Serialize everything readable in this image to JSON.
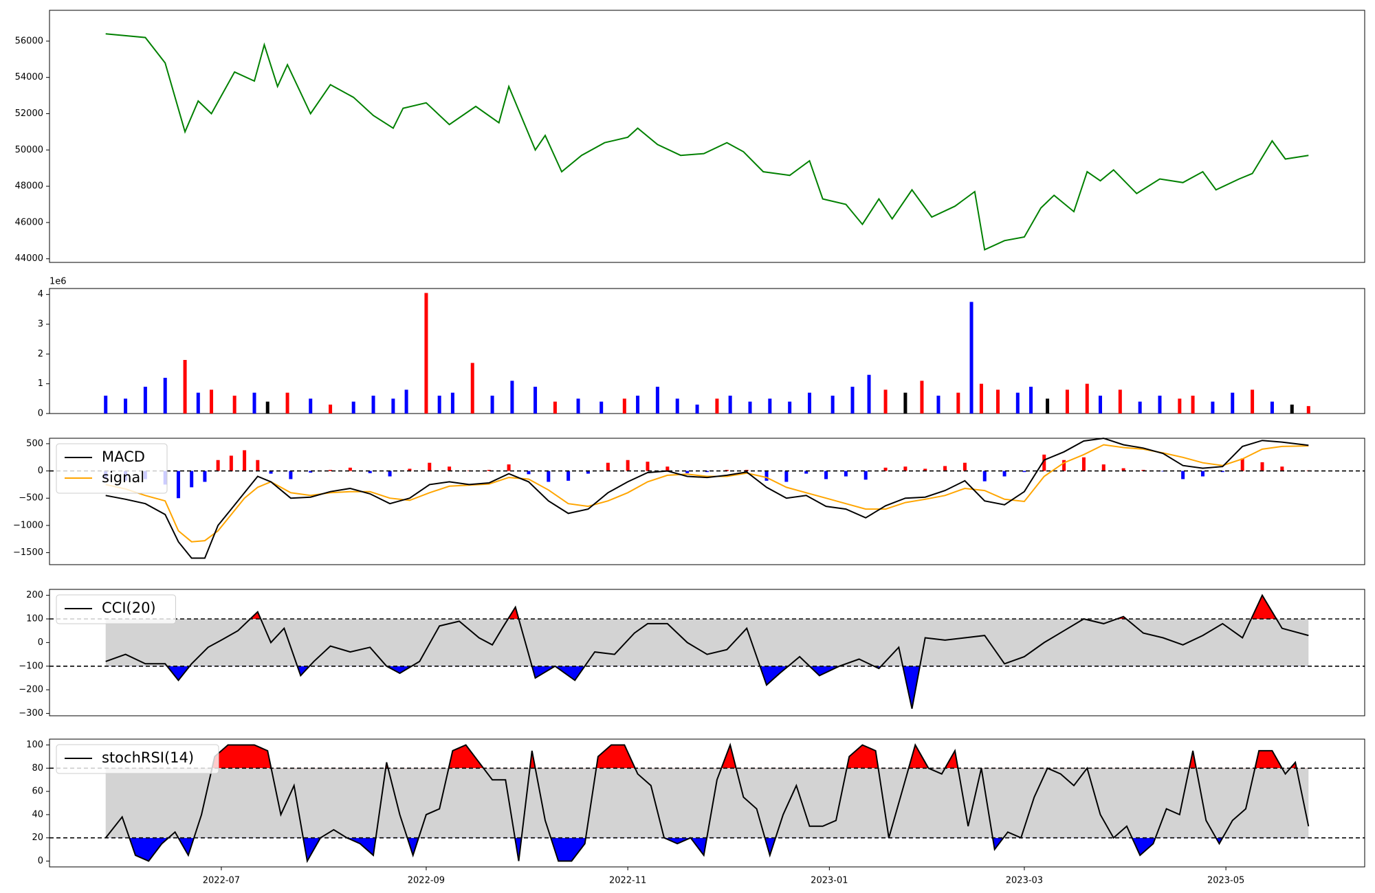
{
  "chart_data": [
    {
      "type": "line",
      "panel": "price",
      "color": "#008000",
      "ylim": [
        43800,
        57700
      ],
      "yticks": [
        44000,
        46000,
        48000,
        50000,
        52000,
        54000,
        56000
      ],
      "yticklabels": [
        "44000",
        "46000",
        "48000",
        "50000",
        "52000",
        "54000",
        "56000"
      ],
      "x": [
        "2022-05-27",
        "2022-06-08",
        "2022-06-14",
        "2022-06-20",
        "2022-06-24",
        "2022-06-28",
        "2022-07-05",
        "2022-07-11",
        "2022-07-14",
        "2022-07-18",
        "2022-07-21",
        "2022-07-28",
        "2022-08-03",
        "2022-08-10",
        "2022-08-16",
        "2022-08-22",
        "2022-08-25",
        "2022-09-01",
        "2022-09-08",
        "2022-09-16",
        "2022-09-23",
        "2022-09-26",
        "2022-10-04",
        "2022-10-07",
        "2022-10-12",
        "2022-10-18",
        "2022-10-25",
        "2022-11-01",
        "2022-11-04",
        "2022-11-10",
        "2022-11-17",
        "2022-11-24",
        "2022-12-01",
        "2022-12-06",
        "2022-12-12",
        "2022-12-20",
        "2022-12-26",
        "2022-12-30",
        "2023-01-06",
        "2023-01-11",
        "2023-01-16",
        "2023-01-20",
        "2023-01-26",
        "2023-02-01",
        "2023-02-08",
        "2023-02-14",
        "2023-02-17",
        "2023-02-23",
        "2023-03-01",
        "2023-03-06",
        "2023-03-10",
        "2023-03-16",
        "2023-03-20",
        "2023-03-24",
        "2023-03-28",
        "2023-04-04",
        "2023-04-11",
        "2023-04-18",
        "2023-04-24",
        "2023-04-28",
        "2023-05-05",
        "2023-05-09",
        "2023-05-15",
        "2023-05-19",
        "2023-05-26"
      ],
      "values": [
        56400,
        56200,
        54800,
        51000,
        52700,
        52000,
        54300,
        53800,
        55800,
        53500,
        54700,
        52000,
        53600,
        52900,
        51900,
        51200,
        52300,
        52600,
        51400,
        52400,
        51500,
        53500,
        50000,
        50800,
        48800,
        49700,
        50400,
        50700,
        51200,
        50300,
        49700,
        49800,
        50400,
        49900,
        48800,
        48600,
        49400,
        47300,
        47000,
        45900,
        47300,
        46200,
        47800,
        46300,
        46900,
        47700,
        44500,
        45000,
        45200,
        46800,
        47500,
        46600,
        48800,
        48300,
        48900,
        47600,
        48400,
        48200,
        48800,
        47800,
        48400,
        48700,
        50500,
        49500,
        49700
      ]
    },
    {
      "type": "bar",
      "panel": "volume",
      "exponent_label": "1e6",
      "ylim": [
        0,
        4.2
      ],
      "yticks": [
        0,
        1,
        2,
        3,
        4
      ],
      "yticklabels": [
        "0",
        "1",
        "2",
        "3",
        "4"
      ],
      "colors": {
        "up": "#ff0000",
        "down": "#0000ff",
        "flat": "#000000"
      },
      "x": [
        "2022-05-27",
        "2022-06-02",
        "2022-06-08",
        "2022-06-14",
        "2022-06-20",
        "2022-06-24",
        "2022-06-28",
        "2022-07-05",
        "2022-07-11",
        "2022-07-15",
        "2022-07-21",
        "2022-07-28",
        "2022-08-03",
        "2022-08-10",
        "2022-08-16",
        "2022-08-22",
        "2022-08-26",
        "2022-09-01",
        "2022-09-05",
        "2022-09-09",
        "2022-09-15",
        "2022-09-21",
        "2022-09-27",
        "2022-10-04",
        "2022-10-10",
        "2022-10-17",
        "2022-10-24",
        "2022-10-31",
        "2022-11-04",
        "2022-11-10",
        "2022-11-16",
        "2022-11-22",
        "2022-11-28",
        "2022-12-02",
        "2022-12-08",
        "2022-12-14",
        "2022-12-20",
        "2022-12-26",
        "2023-01-02",
        "2023-01-08",
        "2023-01-13",
        "2023-01-18",
        "2023-01-24",
        "2023-01-29",
        "2023-02-03",
        "2023-02-09",
        "2023-02-13",
        "2023-02-16",
        "2023-02-21",
        "2023-02-27",
        "2023-03-03",
        "2023-03-08",
        "2023-03-14",
        "2023-03-20",
        "2023-03-24",
        "2023-03-30",
        "2023-04-05",
        "2023-04-11",
        "2023-04-17",
        "2023-04-21",
        "2023-04-27",
        "2023-05-03",
        "2023-05-09",
        "2023-05-15",
        "2023-05-21",
        "2023-05-26"
      ],
      "values": [
        0.6,
        0.5,
        0.9,
        1.2,
        1.8,
        0.7,
        0.8,
        0.6,
        0.7,
        0.4,
        0.7,
        0.5,
        0.3,
        0.4,
        0.6,
        0.5,
        0.8,
        4.05,
        0.6,
        0.7,
        1.7,
        0.6,
        1.1,
        0.9,
        0.4,
        0.5,
        0.4,
        0.5,
        0.6,
        0.9,
        0.5,
        0.3,
        0.5,
        0.6,
        0.4,
        0.5,
        0.4,
        0.7,
        0.6,
        0.9,
        1.3,
        0.8,
        0.7,
        1.1,
        0.6,
        0.7,
        3.75,
        1.0,
        0.8,
        0.7,
        0.9,
        0.5,
        0.8,
        1.0,
        0.6,
        0.8,
        0.4,
        0.6,
        0.5,
        0.6,
        0.4,
        0.7,
        0.8,
        0.4,
        0.3,
        0.25
      ],
      "directions": [
        "down",
        "down",
        "down",
        "down",
        "up",
        "down",
        "up",
        "up",
        "down",
        "flat",
        "up",
        "down",
        "up",
        "down",
        "down",
        "down",
        "down",
        "up",
        "down",
        "down",
        "up",
        "down",
        "down",
        "down",
        "up",
        "down",
        "down",
        "up",
        "down",
        "down",
        "down",
        "down",
        "up",
        "down",
        "down",
        "down",
        "down",
        "down",
        "down",
        "down",
        "down",
        "up",
        "flat",
        "up",
        "down",
        "up",
        "down",
        "up",
        "up",
        "down",
        "down",
        "flat",
        "up",
        "up",
        "down",
        "up",
        "down",
        "down",
        "up",
        "up",
        "down",
        "down",
        "up",
        "down",
        "flat",
        "up"
      ]
    },
    {
      "type": "line",
      "panel": "macd",
      "ylim": [
        -1720,
        600
      ],
      "yticks": [
        -1500,
        -1000,
        -500,
        0,
        500
      ],
      "yticklabels": [
        "−1500",
        "−1000",
        "−500",
        "0",
        "500"
      ],
      "legend": [
        "MACD",
        "signal"
      ],
      "legend_placement": "upper left",
      "hline": 0,
      "x": [
        "2022-05-27",
        "2022-06-02",
        "2022-06-08",
        "2022-06-14",
        "2022-06-18",
        "2022-06-22",
        "2022-06-26",
        "2022-06-30",
        "2022-07-04",
        "2022-07-08",
        "2022-07-12",
        "2022-07-16",
        "2022-07-22",
        "2022-07-28",
        "2022-08-03",
        "2022-08-09",
        "2022-08-15",
        "2022-08-21",
        "2022-08-27",
        "2022-09-02",
        "2022-09-08",
        "2022-09-14",
        "2022-09-20",
        "2022-09-26",
        "2022-10-02",
        "2022-10-08",
        "2022-10-14",
        "2022-10-20",
        "2022-10-26",
        "2022-11-01",
        "2022-11-07",
        "2022-11-13",
        "2022-11-19",
        "2022-11-25",
        "2022-12-01",
        "2022-12-07",
        "2022-12-13",
        "2022-12-19",
        "2022-12-25",
        "2022-12-31",
        "2023-01-06",
        "2023-01-12",
        "2023-01-18",
        "2023-01-24",
        "2023-01-30",
        "2023-02-05",
        "2023-02-11",
        "2023-02-17",
        "2023-02-23",
        "2023-03-01",
        "2023-03-07",
        "2023-03-13",
        "2023-03-19",
        "2023-03-25",
        "2023-03-31",
        "2023-04-06",
        "2023-04-12",
        "2023-04-18",
        "2023-04-24",
        "2023-04-30",
        "2023-05-06",
        "2023-05-12",
        "2023-05-18",
        "2023-05-26"
      ],
      "series": [
        {
          "name": "MACD",
          "color": "#000000",
          "values": [
            -450,
            -520,
            -600,
            -800,
            -1300,
            -1600,
            -1600,
            -1000,
            -700,
            -400,
            -100,
            -200,
            -500,
            -480,
            -380,
            -320,
            -420,
            -600,
            -500,
            -250,
            -200,
            -250,
            -220,
            -50,
            -200,
            -550,
            -780,
            -700,
            -400,
            -200,
            -30,
            0,
            -100,
            -120,
            -80,
            -20,
            -300,
            -500,
            -450,
            -650,
            -700,
            -860,
            -640,
            -500,
            -480,
            -360,
            -180,
            -550,
            -620,
            -380,
            200,
            350,
            550,
            600,
            480,
            420,
            320,
            100,
            50,
            80,
            450,
            560,
            530,
            470
          ]
        },
        {
          "name": "signal",
          "color": "#ffa500",
          "values": [
            -250,
            -330,
            -450,
            -550,
            -1100,
            -1300,
            -1280,
            -1100,
            -800,
            -500,
            -300,
            -200,
            -400,
            -450,
            -400,
            -380,
            -380,
            -500,
            -540,
            -400,
            -280,
            -260,
            -240,
            -120,
            -150,
            -350,
            -600,
            -650,
            -550,
            -400,
            -200,
            -80,
            -60,
            -100,
            -100,
            -40,
            -120,
            -300,
            -400,
            -500,
            -600,
            -700,
            -700,
            -580,
            -520,
            -450,
            -320,
            -360,
            -520,
            -560,
            -100,
            150,
            300,
            480,
            430,
            400,
            330,
            250,
            150,
            100,
            220,
            400,
            450,
            460
          ]
        },
        {
          "name": "histogram",
          "color": "#ff0000",
          "negative_color": "#0000ff",
          "values": [
            -150,
            -180,
            -150,
            -250,
            -500,
            -300,
            -200,
            200,
            280,
            380,
            200,
            -50,
            -150,
            -30,
            20,
            60,
            -40,
            -100,
            40,
            150,
            80,
            10,
            20,
            120,
            -60,
            -200,
            -180,
            -50,
            150,
            200,
            170,
            80,
            -40,
            -20,
            20,
            20,
            -180,
            -200,
            -50,
            -150,
            -100,
            -160,
            60,
            80,
            40,
            90,
            150,
            -190,
            -100,
            -20,
            300,
            200,
            250,
            120,
            50,
            20,
            -10,
            -150,
            -100,
            -20,
            230,
            160,
            80,
            10
          ]
        }
      ]
    },
    {
      "type": "area",
      "panel": "cci",
      "ylim": [
        -310,
        225
      ],
      "yticks": [
        -300,
        -200,
        -100,
        0,
        100,
        200
      ],
      "yticklabels": [
        "−300",
        "−200",
        "−100",
        "0",
        "100",
        "200"
      ],
      "legend": [
        "CCI(20)"
      ],
      "legend_placement": "upper left",
      "hlines": [
        100,
        -100
      ],
      "band_color": "#d3d3d3",
      "overbought_color": "#ff0000",
      "oversold_color": "#0000ff",
      "x": [
        "2022-05-27",
        "2022-06-02",
        "2022-06-08",
        "2022-06-14",
        "2022-06-18",
        "2022-06-22",
        "2022-06-27",
        "2022-07-01",
        "2022-07-06",
        "2022-07-12",
        "2022-07-16",
        "2022-07-20",
        "2022-07-25",
        "2022-07-29",
        "2022-08-03",
        "2022-08-09",
        "2022-08-15",
        "2022-08-20",
        "2022-08-24",
        "2022-08-30",
        "2022-09-05",
        "2022-09-11",
        "2022-09-17",
        "2022-09-21",
        "2022-09-24",
        "2022-09-28",
        "2022-10-04",
        "2022-10-10",
        "2022-10-16",
        "2022-10-22",
        "2022-10-28",
        "2022-11-03",
        "2022-11-07",
        "2022-11-13",
        "2022-11-19",
        "2022-11-25",
        "2022-12-01",
        "2022-12-07",
        "2022-12-13",
        "2022-12-17",
        "2022-12-23",
        "2022-12-29",
        "2023-01-04",
        "2023-01-10",
        "2023-01-16",
        "2023-01-22",
        "2023-01-26",
        "2023-01-30",
        "2023-02-05",
        "2023-02-11",
        "2023-02-17",
        "2023-02-23",
        "2023-03-01",
        "2023-03-07",
        "2023-03-13",
        "2023-03-19",
        "2023-03-25",
        "2023-03-31",
        "2023-04-06",
        "2023-04-12",
        "2023-04-18",
        "2023-04-24",
        "2023-04-30",
        "2023-05-06",
        "2023-05-12",
        "2023-05-18",
        "2023-05-26"
      ],
      "values": [
        -80,
        -50,
        -90,
        -90,
        -160,
        -90,
        -20,
        10,
        50,
        130,
        0,
        60,
        -140,
        -80,
        -15,
        -40,
        -20,
        -100,
        -130,
        -80,
        70,
        90,
        20,
        -10,
        60,
        150,
        -150,
        -100,
        -160,
        -40,
        -50,
        40,
        80,
        80,
        0,
        -50,
        -30,
        60,
        -180,
        -130,
        -60,
        -140,
        -100,
        -70,
        -110,
        -20,
        -280,
        20,
        10,
        20,
        30,
        -90,
        -60,
        0,
        50,
        100,
        80,
        110,
        40,
        20,
        -10,
        30,
        80,
        20,
        200,
        60,
        30
      ]
    },
    {
      "type": "area",
      "panel": "stochrsi",
      "ylim": [
        -5,
        105
      ],
      "yticks": [
        0,
        20,
        40,
        60,
        80,
        100
      ],
      "yticklabels": [
        "0",
        "20",
        "40",
        "60",
        "80",
        "100"
      ],
      "legend": [
        "stochRSI(14)"
      ],
      "legend_placement": "upper left",
      "hlines": [
        80,
        20
      ],
      "band_color": "#d3d3d3",
      "overbought_color": "#ff0000",
      "oversold_color": "#0000ff",
      "xticks": [
        "2022-07-01",
        "2022-09-01",
        "2022-11-01",
        "2023-01-01",
        "2023-03-01",
        "2023-05-01"
      ],
      "xticklabels": [
        "2022-07",
        "2022-09",
        "2022-11",
        "2023-01",
        "2023-03",
        "2023-05"
      ],
      "x": [
        "2022-05-27",
        "2022-06-01",
        "2022-06-05",
        "2022-06-09",
        "2022-06-13",
        "2022-06-17",
        "2022-06-21",
        "2022-06-25",
        "2022-06-29",
        "2022-07-03",
        "2022-07-07",
        "2022-07-11",
        "2022-07-15",
        "2022-07-19",
        "2022-07-23",
        "2022-07-27",
        "2022-07-31",
        "2022-08-04",
        "2022-08-08",
        "2022-08-12",
        "2022-08-16",
        "2022-08-20",
        "2022-08-24",
        "2022-08-28",
        "2022-09-01",
        "2022-09-05",
        "2022-09-09",
        "2022-09-13",
        "2022-09-17",
        "2022-09-21",
        "2022-09-25",
        "2022-09-29",
        "2022-10-03",
        "2022-10-07",
        "2022-10-11",
        "2022-10-15",
        "2022-10-19",
        "2022-10-23",
        "2022-10-27",
        "2022-10-31",
        "2022-11-04",
        "2022-11-08",
        "2022-11-12",
        "2022-11-16",
        "2022-11-20",
        "2022-11-24",
        "2022-11-28",
        "2022-12-02",
        "2022-12-06",
        "2022-12-10",
        "2022-12-14",
        "2022-12-18",
        "2022-12-22",
        "2022-12-26",
        "2022-12-30",
        "2023-01-03",
        "2023-01-07",
        "2023-01-11",
        "2023-01-15",
        "2023-01-19",
        "2023-01-23",
        "2023-01-27",
        "2023-01-31",
        "2023-02-04",
        "2023-02-08",
        "2023-02-12",
        "2023-02-16",
        "2023-02-20",
        "2023-02-24",
        "2023-02-28",
        "2023-03-04",
        "2023-03-08",
        "2023-03-12",
        "2023-03-16",
        "2023-03-20",
        "2023-03-24",
        "2023-03-28",
        "2023-04-01",
        "2023-04-05",
        "2023-04-09",
        "2023-04-13",
        "2023-04-17",
        "2023-04-21",
        "2023-04-25",
        "2023-04-29",
        "2023-05-03",
        "2023-05-07",
        "2023-05-11",
        "2023-05-15",
        "2023-05-19",
        "2023-05-22",
        "2023-05-26"
      ],
      "values": [
        20,
        38,
        5,
        0,
        15,
        25,
        5,
        40,
        90,
        100,
        100,
        100,
        95,
        40,
        65,
        0,
        20,
        27,
        20,
        15,
        5,
        85,
        40,
        5,
        40,
        45,
        95,
        100,
        85,
        70,
        70,
        0,
        95,
        35,
        0,
        0,
        15,
        90,
        100,
        100,
        75,
        65,
        20,
        15,
        20,
        5,
        70,
        100,
        55,
        45,
        5,
        40,
        65,
        30,
        30,
        35,
        90,
        100,
        95,
        20,
        60,
        100,
        80,
        75,
        95,
        30,
        80,
        10,
        25,
        20,
        55,
        80,
        75,
        65,
        80,
        40,
        20,
        30,
        5,
        15,
        45,
        40,
        95,
        35,
        15,
        35,
        45,
        95,
        95,
        75,
        85,
        30
      ]
    }
  ]
}
